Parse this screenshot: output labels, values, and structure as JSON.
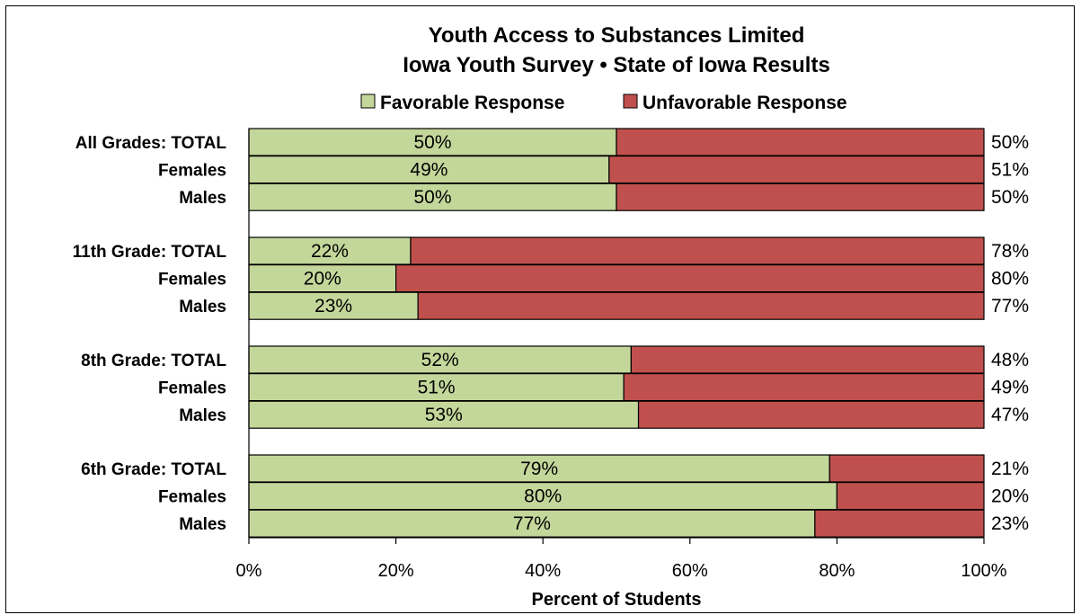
{
  "chart_data": {
    "type": "bar",
    "orientation": "horizontal",
    "stacked": true,
    "title": "Youth Access to Substances Limited",
    "subtitle": "Iowa Youth Survey • State of Iowa Results",
    "xlabel": "Percent of Students",
    "ylabel": "",
    "xlim": [
      0,
      100
    ],
    "x_ticks": [
      "0%",
      "20%",
      "40%",
      "60%",
      "80%",
      "100%"
    ],
    "legend_position": "top",
    "grid": false,
    "groups": [
      {
        "rows": [
          {
            "label": "All Grades:  TOTAL",
            "favorable": 50,
            "unfavorable": 50
          },
          {
            "label": "Females",
            "favorable": 49,
            "unfavorable": 51
          },
          {
            "label": "Males",
            "favorable": 50,
            "unfavorable": 50
          }
        ]
      },
      {
        "rows": [
          {
            "label": "11th Grade:  TOTAL",
            "favorable": 22,
            "unfavorable": 78
          },
          {
            "label": "Females",
            "favorable": 20,
            "unfavorable": 80
          },
          {
            "label": "Males",
            "favorable": 23,
            "unfavorable": 77
          }
        ]
      },
      {
        "rows": [
          {
            "label": "8th Grade:  TOTAL",
            "favorable": 52,
            "unfavorable": 48
          },
          {
            "label": "Females",
            "favorable": 51,
            "unfavorable": 49
          },
          {
            "label": "Males",
            "favorable": 53,
            "unfavorable": 47
          }
        ]
      },
      {
        "rows": [
          {
            "label": "6th Grade:  TOTAL",
            "favorable": 79,
            "unfavorable": 21
          },
          {
            "label": "Females",
            "favorable": 80,
            "unfavorable": 20
          },
          {
            "label": "Males",
            "favorable": 77,
            "unfavorable": 23
          }
        ]
      }
    ],
    "series": [
      {
        "name": "Favorable Response",
        "key": "favorable",
        "color": "#c4d79b"
      },
      {
        "name": "Unfavorable Response",
        "key": "unfavorable",
        "color": "#c0504d"
      }
    ]
  }
}
